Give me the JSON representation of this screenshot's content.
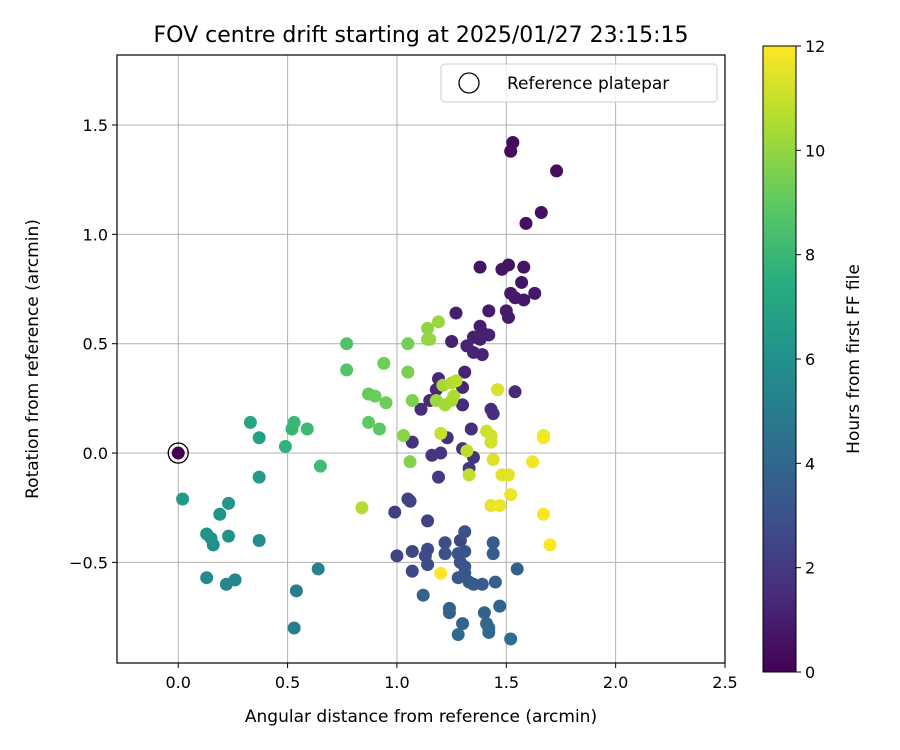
{
  "chart_data": {
    "type": "scatter",
    "title": "FOV centre drift starting at 2025/01/27 23:15:15",
    "xlabel": "Angular distance from reference (arcmin)",
    "ylabel": "Rotation from reference (arcmin)",
    "xlim": [
      -0.28,
      2.5
    ],
    "ylim": [
      -0.96,
      1.82
    ],
    "xticks": [
      0.0,
      0.5,
      1.0,
      1.5,
      2.0,
      2.5
    ],
    "xtick_labels": [
      "0.0",
      "0.5",
      "1.0",
      "1.5",
      "2.0",
      "2.5"
    ],
    "yticks": [
      -0.5,
      0.0,
      0.5,
      1.0,
      1.5
    ],
    "ytick_labels": [
      "−0.5",
      "0.0",
      "0.5",
      "1.0",
      "1.5"
    ],
    "grid": true,
    "legend": {
      "position": "top-right",
      "label": "Reference platepar"
    },
    "colormap": "viridis",
    "colorbar": {
      "label": "Hours from first FF file",
      "range": [
        0,
        12
      ],
      "ticks": [
        0,
        2,
        4,
        6,
        8,
        10,
        12
      ],
      "tick_labels": [
        "0",
        "2",
        "4",
        "6",
        "8",
        "10",
        "12"
      ]
    },
    "reference_point": {
      "x": 0.0,
      "y": 0.0,
      "hours": 0.0
    },
    "points": [
      {
        "x": 1.53,
        "y": 1.42,
        "h": 0.3
      },
      {
        "x": 1.52,
        "y": 1.38,
        "h": 0.3
      },
      {
        "x": 1.73,
        "y": 1.29,
        "h": 0.4
      },
      {
        "x": 1.66,
        "y": 1.1,
        "h": 0.5
      },
      {
        "x": 1.59,
        "y": 1.05,
        "h": 0.5
      },
      {
        "x": 1.38,
        "y": 0.85,
        "h": 0.6
      },
      {
        "x": 1.51,
        "y": 0.86,
        "h": 0.6
      },
      {
        "x": 1.48,
        "y": 0.84,
        "h": 0.6
      },
      {
        "x": 1.58,
        "y": 0.85,
        "h": 0.7
      },
      {
        "x": 1.57,
        "y": 0.78,
        "h": 0.7
      },
      {
        "x": 1.52,
        "y": 0.73,
        "h": 0.7
      },
      {
        "x": 1.54,
        "y": 0.71,
        "h": 0.8
      },
      {
        "x": 1.63,
        "y": 0.73,
        "h": 0.8
      },
      {
        "x": 1.58,
        "y": 0.7,
        "h": 0.8
      },
      {
        "x": 1.42,
        "y": 0.65,
        "h": 0.9
      },
      {
        "x": 1.5,
        "y": 0.65,
        "h": 0.9
      },
      {
        "x": 1.51,
        "y": 0.62,
        "h": 0.9
      },
      {
        "x": 1.27,
        "y": 0.64,
        "h": 1.0
      },
      {
        "x": 1.38,
        "y": 0.58,
        "h": 1.0
      },
      {
        "x": 1.39,
        "y": 0.55,
        "h": 1.0
      },
      {
        "x": 1.35,
        "y": 0.53,
        "h": 1.1
      },
      {
        "x": 1.42,
        "y": 0.54,
        "h": 1.1
      },
      {
        "x": 1.38,
        "y": 0.52,
        "h": 1.1
      },
      {
        "x": 1.25,
        "y": 0.51,
        "h": 1.1
      },
      {
        "x": 1.32,
        "y": 0.49,
        "h": 1.2
      },
      {
        "x": 1.35,
        "y": 0.46,
        "h": 1.2
      },
      {
        "x": 1.39,
        "y": 0.45,
        "h": 1.2
      },
      {
        "x": 1.31,
        "y": 0.37,
        "h": 1.2
      },
      {
        "x": 1.19,
        "y": 0.34,
        "h": 1.3
      },
      {
        "x": 1.3,
        "y": 0.3,
        "h": 1.3
      },
      {
        "x": 1.18,
        "y": 0.29,
        "h": 1.3
      },
      {
        "x": 1.54,
        "y": 0.28,
        "h": 1.4
      },
      {
        "x": 1.15,
        "y": 0.24,
        "h": 1.4
      },
      {
        "x": 1.3,
        "y": 0.22,
        "h": 1.4
      },
      {
        "x": 1.11,
        "y": 0.2,
        "h": 1.5
      },
      {
        "x": 1.43,
        "y": 0.2,
        "h": 1.5
      },
      {
        "x": 1.44,
        "y": 0.18,
        "h": 1.5
      },
      {
        "x": 1.34,
        "y": 0.11,
        "h": 1.6
      },
      {
        "x": 1.23,
        "y": 0.07,
        "h": 1.6
      },
      {
        "x": 1.07,
        "y": 0.05,
        "h": 1.7
      },
      {
        "x": 1.3,
        "y": 0.02,
        "h": 1.7
      },
      {
        "x": 1.2,
        "y": 0.0,
        "h": 1.8
      },
      {
        "x": 1.16,
        "y": -0.01,
        "h": 1.8
      },
      {
        "x": 1.35,
        "y": -0.02,
        "h": 1.8
      },
      {
        "x": 1.33,
        "y": -0.07,
        "h": 1.9
      },
      {
        "x": 1.19,
        "y": -0.11,
        "h": 2.0
      },
      {
        "x": 0.99,
        "y": -0.27,
        "h": 2.2
      },
      {
        "x": 1.14,
        "y": -0.31,
        "h": 2.3
      },
      {
        "x": 1.06,
        "y": -0.22,
        "h": 2.4
      },
      {
        "x": 1.05,
        "y": -0.21,
        "h": 2.4
      },
      {
        "x": 1.29,
        "y": -0.4,
        "h": 2.5
      },
      {
        "x": 1.0,
        "y": -0.47,
        "h": 2.5
      },
      {
        "x": 1.07,
        "y": -0.45,
        "h": 2.6
      },
      {
        "x": 1.07,
        "y": -0.54,
        "h": 2.6
      },
      {
        "x": 1.14,
        "y": -0.44,
        "h": 2.7
      },
      {
        "x": 1.13,
        "y": -0.47,
        "h": 2.7
      },
      {
        "x": 1.14,
        "y": -0.51,
        "h": 2.8
      },
      {
        "x": 1.22,
        "y": -0.41,
        "h": 2.8
      },
      {
        "x": 1.22,
        "y": -0.46,
        "h": 2.9
      },
      {
        "x": 1.28,
        "y": -0.46,
        "h": 3.0
      },
      {
        "x": 1.29,
        "y": -0.5,
        "h": 3.0
      },
      {
        "x": 1.31,
        "y": -0.36,
        "h": 3.1
      },
      {
        "x": 1.31,
        "y": -0.45,
        "h": 3.1
      },
      {
        "x": 1.31,
        "y": -0.52,
        "h": 3.2
      },
      {
        "x": 1.31,
        "y": -0.55,
        "h": 3.2
      },
      {
        "x": 1.28,
        "y": -0.57,
        "h": 3.3
      },
      {
        "x": 1.33,
        "y": -0.59,
        "h": 3.3
      },
      {
        "x": 1.35,
        "y": -0.6,
        "h": 3.4
      },
      {
        "x": 1.39,
        "y": -0.6,
        "h": 3.4
      },
      {
        "x": 1.44,
        "y": -0.41,
        "h": 3.5
      },
      {
        "x": 1.44,
        "y": -0.46,
        "h": 3.5
      },
      {
        "x": 1.45,
        "y": -0.59,
        "h": 3.6
      },
      {
        "x": 1.55,
        "y": -0.53,
        "h": 3.6
      },
      {
        "x": 1.12,
        "y": -0.65,
        "h": 3.7
      },
      {
        "x": 1.24,
        "y": -0.71,
        "h": 3.7
      },
      {
        "x": 1.24,
        "y": -0.73,
        "h": 3.8
      },
      {
        "x": 1.4,
        "y": -0.73,
        "h": 3.8
      },
      {
        "x": 1.47,
        "y": -0.7,
        "h": 3.9
      },
      {
        "x": 1.3,
        "y": -0.78,
        "h": 3.9
      },
      {
        "x": 1.41,
        "y": -0.78,
        "h": 4.0
      },
      {
        "x": 1.42,
        "y": -0.8,
        "h": 4.0
      },
      {
        "x": 1.42,
        "y": -0.82,
        "h": 4.1
      },
      {
        "x": 1.28,
        "y": -0.83,
        "h": 4.1
      },
      {
        "x": 1.52,
        "y": -0.85,
        "h": 4.2
      },
      {
        "x": 0.54,
        "y": -0.63,
        "h": 5.1
      },
      {
        "x": 0.53,
        "y": -0.8,
        "h": 5.2
      },
      {
        "x": 0.64,
        "y": -0.53,
        "h": 5.3
      },
      {
        "x": 0.22,
        "y": -0.6,
        "h": 5.5
      },
      {
        "x": 0.26,
        "y": -0.58,
        "h": 5.6
      },
      {
        "x": 0.13,
        "y": -0.57,
        "h": 5.7
      },
      {
        "x": 0.37,
        "y": -0.4,
        "h": 5.8
      },
      {
        "x": 0.16,
        "y": -0.42,
        "h": 5.9
      },
      {
        "x": 0.15,
        "y": -0.39,
        "h": 6.0
      },
      {
        "x": 0.13,
        "y": -0.37,
        "h": 6.1
      },
      {
        "x": 0.23,
        "y": -0.38,
        "h": 6.1
      },
      {
        "x": 0.19,
        "y": -0.28,
        "h": 6.2
      },
      {
        "x": 0.23,
        "y": -0.23,
        "h": 6.3
      },
      {
        "x": 0.02,
        "y": -0.21,
        "h": 6.4
      },
      {
        "x": 0.37,
        "y": -0.11,
        "h": 6.5
      },
      {
        "x": 0.37,
        "y": 0.07,
        "h": 6.8
      },
      {
        "x": 0.33,
        "y": 0.14,
        "h": 7.0
      },
      {
        "x": 0.49,
        "y": 0.03,
        "h": 7.7
      },
      {
        "x": 0.52,
        "y": 0.11,
        "h": 7.9
      },
      {
        "x": 0.53,
        "y": 0.14,
        "h": 8.0
      },
      {
        "x": 0.59,
        "y": 0.11,
        "h": 8.1
      },
      {
        "x": 0.65,
        "y": -0.06,
        "h": 8.2
      },
      {
        "x": 0.77,
        "y": 0.5,
        "h": 8.6
      },
      {
        "x": 0.77,
        "y": 0.38,
        "h": 8.7
      },
      {
        "x": 0.92,
        "y": 0.11,
        "h": 8.9
      },
      {
        "x": 0.87,
        "y": 0.14,
        "h": 9.0
      },
      {
        "x": 0.87,
        "y": 0.27,
        "h": 9.1
      },
      {
        "x": 0.9,
        "y": 0.26,
        "h": 9.2
      },
      {
        "x": 0.94,
        "y": 0.41,
        "h": 9.3
      },
      {
        "x": 0.95,
        "y": 0.23,
        "h": 9.3
      },
      {
        "x": 1.05,
        "y": 0.5,
        "h": 9.4
      },
      {
        "x": 1.05,
        "y": 0.37,
        "h": 9.5
      },
      {
        "x": 1.07,
        "y": 0.24,
        "h": 9.6
      },
      {
        "x": 1.06,
        "y": -0.04,
        "h": 9.7
      },
      {
        "x": 1.03,
        "y": 0.08,
        "h": 9.8
      },
      {
        "x": 1.14,
        "y": 0.57,
        "h": 9.9
      },
      {
        "x": 1.14,
        "y": 0.52,
        "h": 10.0
      },
      {
        "x": 1.15,
        "y": 0.52,
        "h": 10.0
      },
      {
        "x": 1.19,
        "y": 0.6,
        "h": 10.1
      },
      {
        "x": 1.18,
        "y": 0.24,
        "h": 10.2
      },
      {
        "x": 1.21,
        "y": 0.31,
        "h": 10.3
      },
      {
        "x": 1.22,
        "y": 0.22,
        "h": 10.3
      },
      {
        "x": 1.25,
        "y": 0.24,
        "h": 10.4
      },
      {
        "x": 1.26,
        "y": 0.26,
        "h": 10.5
      },
      {
        "x": 1.25,
        "y": 0.32,
        "h": 10.6
      },
      {
        "x": 0.84,
        "y": -0.25,
        "h": 10.6
      },
      {
        "x": 1.27,
        "y": 0.33,
        "h": 10.7
      },
      {
        "x": 1.32,
        "y": 0.01,
        "h": 10.8
      },
      {
        "x": 1.33,
        "y": -0.1,
        "h": 10.9
      },
      {
        "x": 1.2,
        "y": 0.09,
        "h": 11.0
      },
      {
        "x": 1.41,
        "y": 0.1,
        "h": 11.1
      },
      {
        "x": 1.43,
        "y": 0.08,
        "h": 11.2
      },
      {
        "x": 1.43,
        "y": 0.05,
        "h": 11.2
      },
      {
        "x": 1.46,
        "y": 0.29,
        "h": 11.3
      },
      {
        "x": 1.44,
        "y": -0.03,
        "h": 11.4
      },
      {
        "x": 1.48,
        "y": -0.1,
        "h": 11.5
      },
      {
        "x": 1.51,
        "y": -0.1,
        "h": 11.5
      },
      {
        "x": 1.43,
        "y": -0.24,
        "h": 11.6
      },
      {
        "x": 1.47,
        "y": -0.24,
        "h": 11.7
      },
      {
        "x": 1.52,
        "y": -0.19,
        "h": 11.7
      },
      {
        "x": 1.62,
        "y": -0.04,
        "h": 11.8
      },
      {
        "x": 1.67,
        "y": 0.08,
        "h": 11.8
      },
      {
        "x": 1.67,
        "y": 0.07,
        "h": 11.9
      },
      {
        "x": 1.67,
        "y": -0.28,
        "h": 11.9
      },
      {
        "x": 1.7,
        "y": -0.42,
        "h": 12.0
      },
      {
        "x": 1.2,
        "y": -0.55,
        "h": 12.0
      }
    ]
  }
}
